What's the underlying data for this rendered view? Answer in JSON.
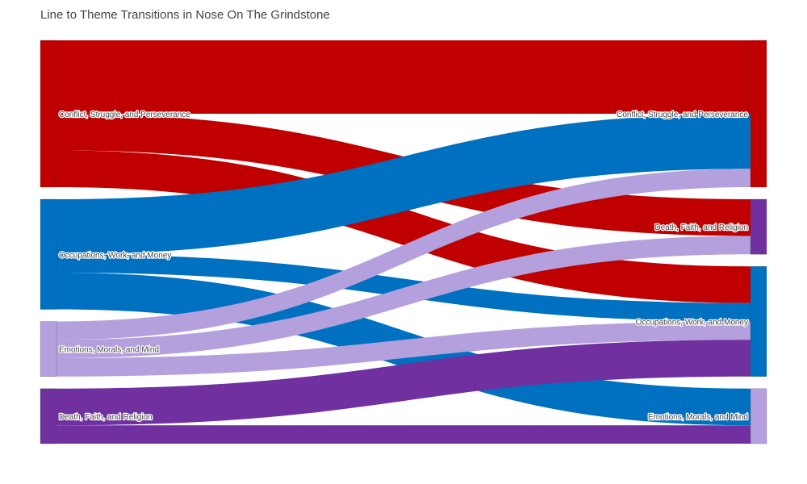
{
  "chart_data": {
    "type": "sankey",
    "title": "Line to Theme Transitions in Nose On The Grindstone",
    "colors": {
      "Conflict, Struggle, and Perseverance": "#c00000",
      "Occupations, Work, and Money": "#0070c0",
      "Emotions, Morals, and Mind": "#b4a0dc",
      "Death, Faith, and Religion": "#7030a0"
    },
    "source_nodes": [
      {
        "label": "Conflict, Struggle, and Perseverance",
        "value": 8
      },
      {
        "label": "Occupations, Work, and Money",
        "value": 6
      },
      {
        "label": "Emotions, Morals, and Mind",
        "value": 3
      },
      {
        "label": "Death, Faith, and Religion",
        "value": 3
      }
    ],
    "target_nodes": [
      {
        "label": "Conflict, Struggle, and Perseverance",
        "value": 8
      },
      {
        "label": "Death, Faith, and Religion",
        "value": 3
      },
      {
        "label": "Occupations, Work, and Money",
        "value": 6
      },
      {
        "label": "Emotions, Morals, and Mind",
        "value": 3
      }
    ],
    "links": [
      {
        "source": "Conflict, Struggle, and Perseverance",
        "target": "Conflict, Struggle, and Perseverance",
        "value": 4
      },
      {
        "source": "Conflict, Struggle, and Perseverance",
        "target": "Death, Faith, and Religion",
        "value": 2
      },
      {
        "source": "Conflict, Struggle, and Perseverance",
        "target": "Occupations, Work, and Money",
        "value": 2
      },
      {
        "source": "Occupations, Work, and Money",
        "target": "Conflict, Struggle, and Perseverance",
        "value": 3
      },
      {
        "source": "Occupations, Work, and Money",
        "target": "Occupations, Work, and Money",
        "value": 1
      },
      {
        "source": "Occupations, Work, and Money",
        "target": "Emotions, Morals, and Mind",
        "value": 2
      },
      {
        "source": "Emotions, Morals, and Mind",
        "target": "Conflict, Struggle, and Perseverance",
        "value": 1
      },
      {
        "source": "Emotions, Morals, and Mind",
        "target": "Death, Faith, and Religion",
        "value": 1
      },
      {
        "source": "Emotions, Morals, and Mind",
        "target": "Occupations, Work, and Money",
        "value": 1
      },
      {
        "source": "Death, Faith, and Religion",
        "target": "Occupations, Work, and Money",
        "value": 2
      },
      {
        "source": "Death, Faith, and Religion",
        "target": "Emotions, Morals, and Mind",
        "value": 1
      }
    ]
  }
}
